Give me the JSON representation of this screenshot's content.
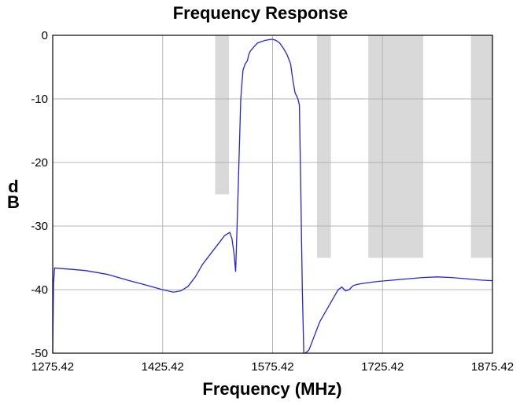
{
  "chart_data": {
    "type": "line",
    "title": "Frequency Response",
    "xlabel": "Frequency (MHz)",
    "ylabel_lines": [
      "d",
      "B"
    ],
    "xlim": [
      1275.42,
      1875.42
    ],
    "ylim": [
      -50,
      0
    ],
    "x_ticks": [
      "1275.42",
      "1425.42",
      "1575.42",
      "1725.42",
      "1875.42"
    ],
    "x_tick_values": [
      1275.42,
      1425.42,
      1575.42,
      1725.42,
      1875.42
    ],
    "y_ticks": [
      "0",
      "-10",
      "-20",
      "-30",
      "-40",
      "-50"
    ],
    "y_tick_values": [
      0,
      -10,
      -20,
      -30,
      -40,
      -50
    ],
    "grid": true,
    "colors": {
      "line": "#2323e6",
      "mask": "#d9d9d9",
      "grid": "#b4b4b4"
    },
    "mask_regions": [
      {
        "x0": 1497,
        "x1": 1516,
        "y_top": 0,
        "y_bottom": -25
      },
      {
        "x0": 1636,
        "x1": 1655,
        "y_top": 0,
        "y_bottom": -35
      },
      {
        "x0": 1706,
        "x1": 1781,
        "y_top": 0,
        "y_bottom": -35
      },
      {
        "x0": 1846,
        "x1": 1875.42,
        "y_top": 0,
        "y_bottom": -35
      }
    ],
    "series": [
      {
        "x": [
          1275.42,
          1276.5,
          1278,
          1300,
          1320,
          1350,
          1380,
          1400,
          1425,
          1440,
          1450,
          1460,
          1470,
          1480,
          1490,
          1500,
          1510,
          1517,
          1520,
          1523,
          1525,
          1527,
          1530,
          1532,
          1535,
          1538,
          1541,
          1543,
          1545,
          1550,
          1555,
          1560,
          1565,
          1570,
          1575,
          1580,
          1585,
          1590,
          1595,
          1600,
          1603,
          1606,
          1608,
          1610,
          1612,
          1614,
          1616,
          1618,
          1620,
          1625,
          1630,
          1635,
          1640,
          1645,
          1650,
          1655,
          1660,
          1665,
          1670,
          1675,
          1680,
          1685,
          1690,
          1700,
          1720,
          1740,
          1760,
          1780,
          1800,
          1820,
          1840,
          1860,
          1875.42
        ],
        "y": [
          -50,
          -39,
          -36.6,
          -36.8,
          -37.0,
          -37.6,
          -38.6,
          -39.2,
          -40.0,
          -40.4,
          -40.2,
          -39.5,
          -38.0,
          -36.0,
          -34.5,
          -33.0,
          -31.5,
          -31.0,
          -32.0,
          -34.5,
          -37.2,
          -30.0,
          -18.0,
          -10.0,
          -5.5,
          -4.5,
          -4.0,
          -3.0,
          -2.5,
          -1.8,
          -1.2,
          -1.0,
          -0.8,
          -0.7,
          -0.6,
          -0.8,
          -1.2,
          -2.0,
          -3.0,
          -4.5,
          -7.0,
          -9.0,
          -9.5,
          -10.0,
          -11.0,
          -25.0,
          -40.0,
          -50.0,
          -50.0,
          -49.5,
          -48.0,
          -46.5,
          -45.0,
          -44.0,
          -43.0,
          -42.0,
          -41.0,
          -40.0,
          -39.6,
          -40.2,
          -40.0,
          -39.4,
          -39.2,
          -39.0,
          -38.7,
          -38.5,
          -38.3,
          -38.1,
          -38.0,
          -38.1,
          -38.3,
          -38.5,
          -38.6
        ]
      }
    ]
  }
}
